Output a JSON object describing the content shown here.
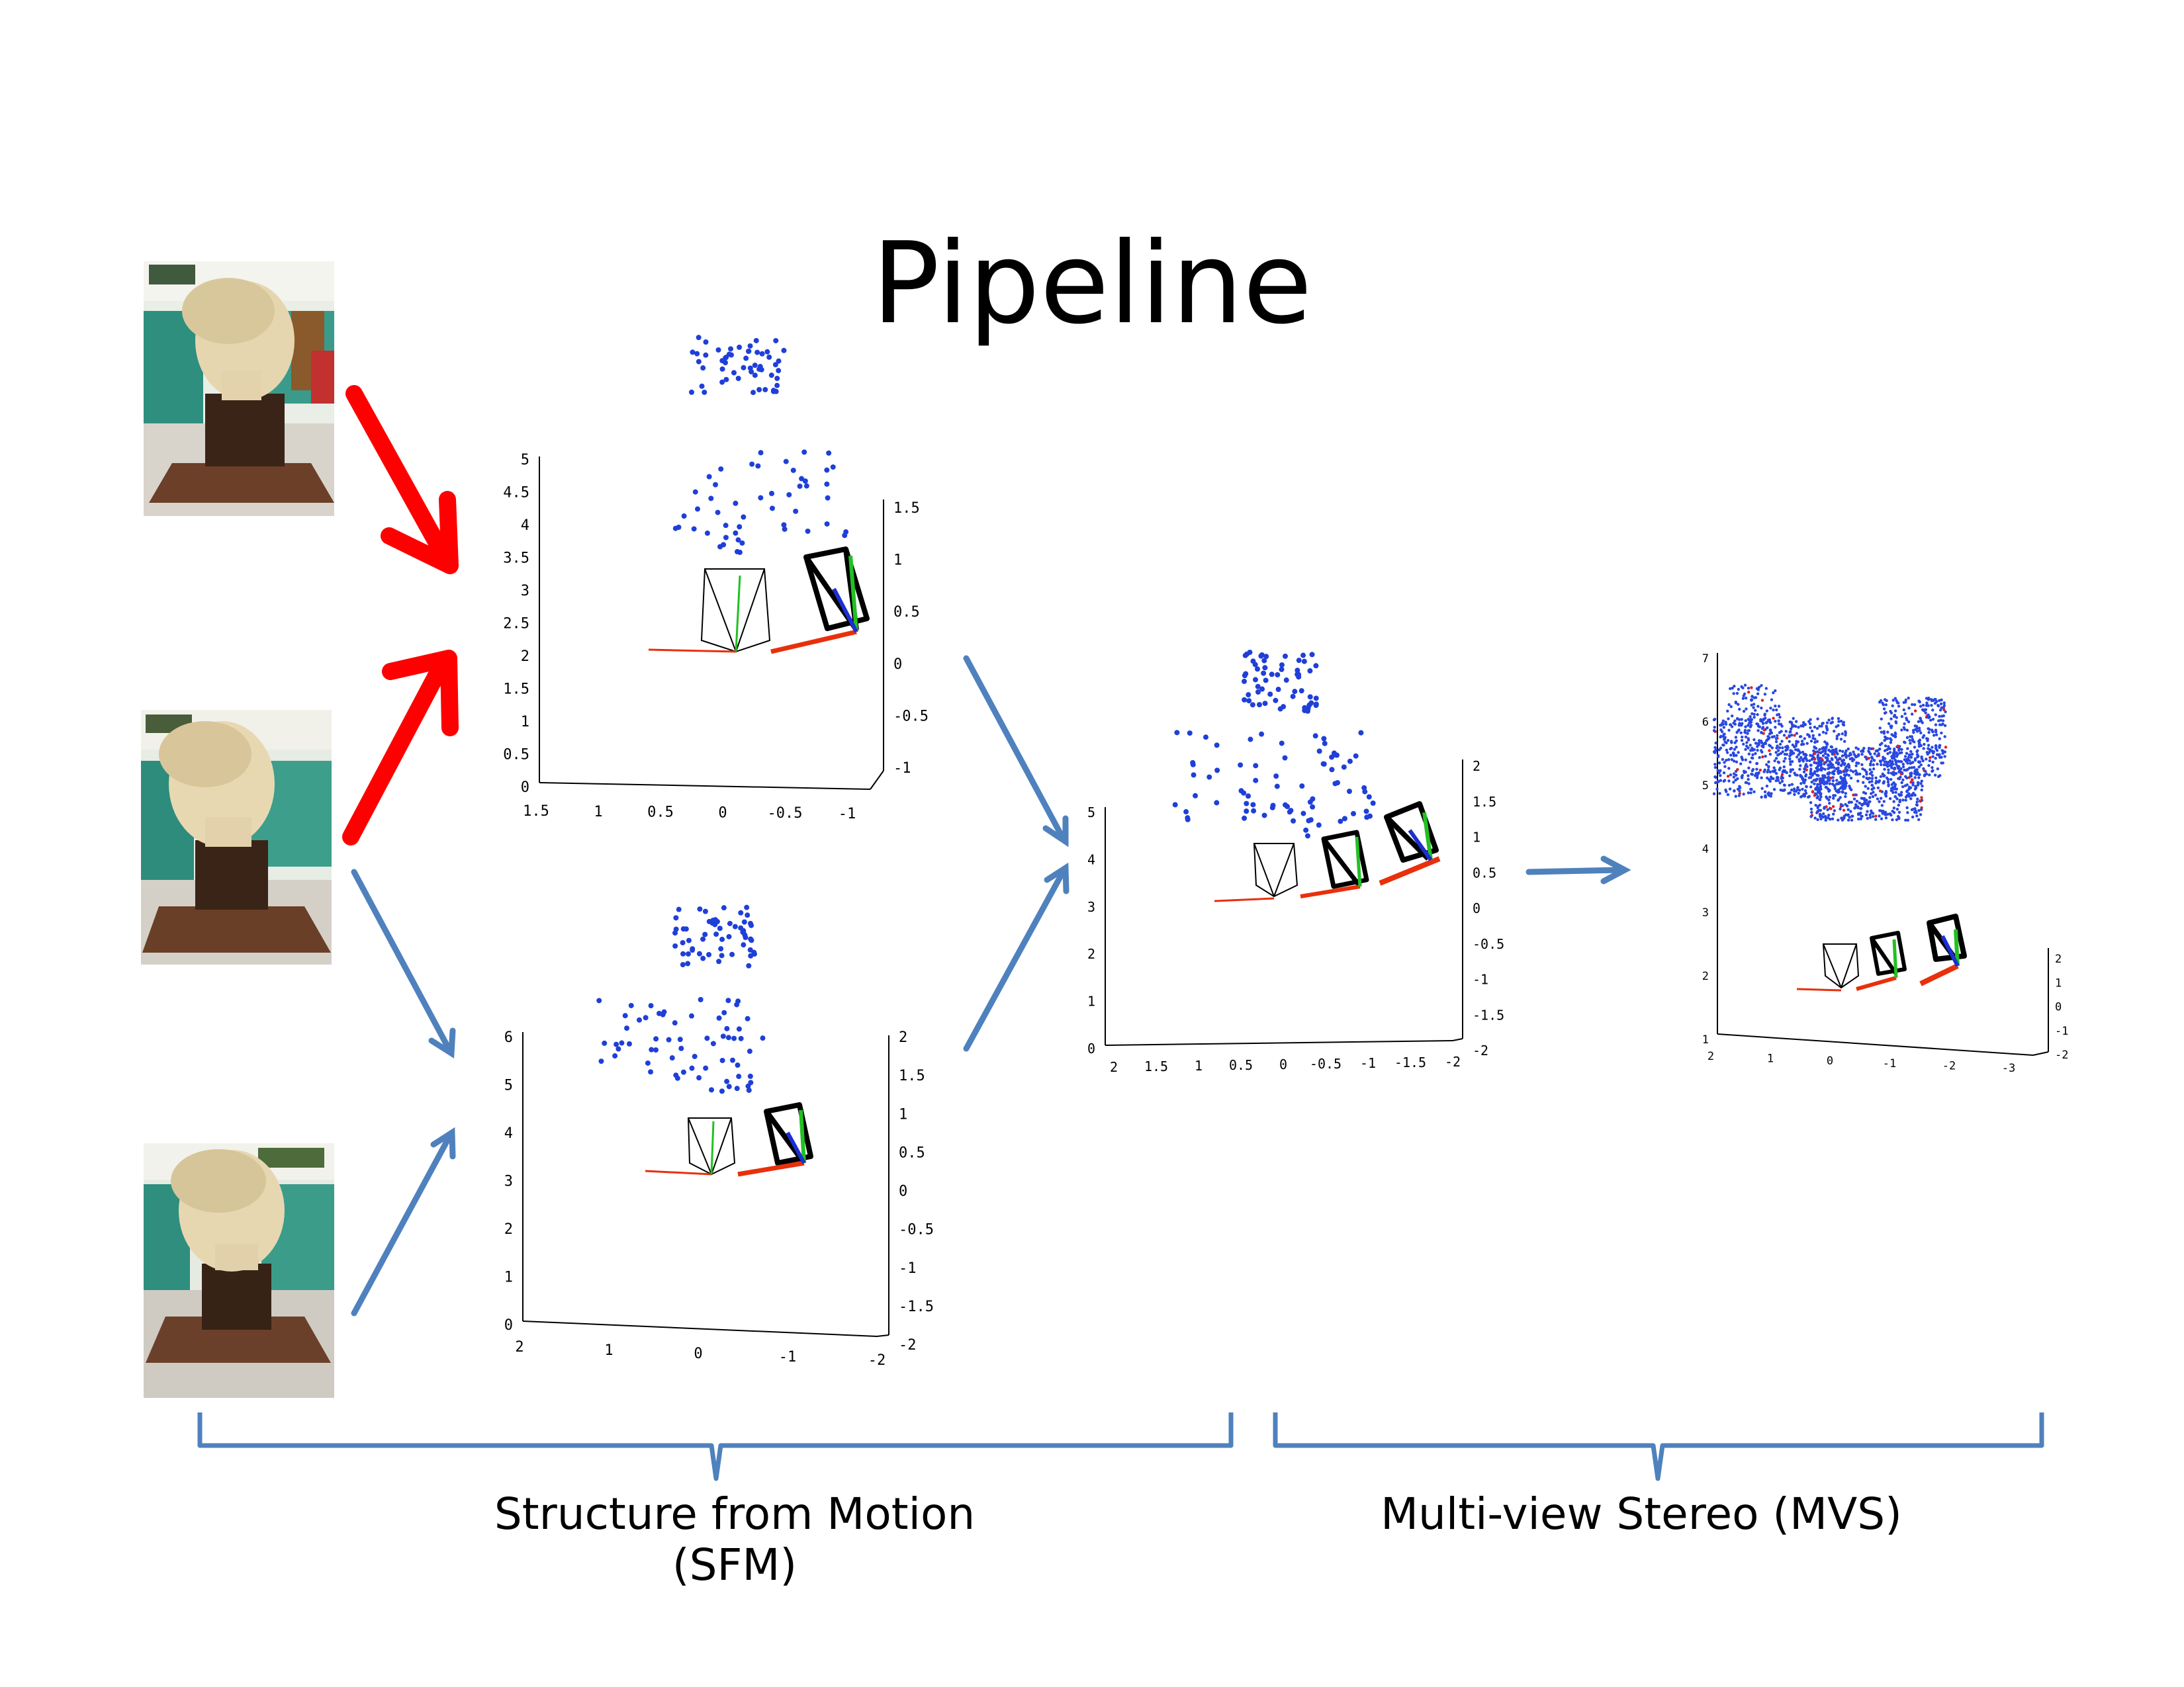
{
  "title": "Pipeline",
  "captions": {
    "sfm": "Structure from Motion (SFM)",
    "mvs": "Multi-view Stereo (MVS)"
  },
  "photos": [
    {
      "icon": "statue-photo-1",
      "description_icon": "bust-statue-icon"
    },
    {
      "icon": "statue-photo-2",
      "description_icon": "bust-statue-icon"
    },
    {
      "icon": "statue-photo-3",
      "description_icon": "bust-statue-icon"
    }
  ],
  "colors": {
    "red_arrow": "#ff0000",
    "blue_arrow": "#4f81bd",
    "bracket": "#4f81bd",
    "points": "#1f3fd8",
    "mvs_cloud": "#2948e0",
    "mvs_red": "#e02020",
    "axis_red": "#e8300c",
    "axis_green": "#22c022",
    "axis_blue": "#1c2fd0"
  },
  "plots": {
    "sfm_top": {
      "z_ticks": [
        "5",
        "4.5",
        "4",
        "3.5",
        "3",
        "2.5",
        "2",
        "1.5",
        "1",
        "0.5",
        "0"
      ],
      "x_ticks": [
        "1.5",
        "1",
        "0.5",
        "0",
        "-0.5",
        "-1"
      ],
      "y_ticks": [
        "1.5",
        "1",
        "0.5",
        "0",
        "-0.5",
        "-1"
      ]
    },
    "sfm_bottom": {
      "z_ticks": [
        "6",
        "5",
        "4",
        "3",
        "2",
        "1",
        "0"
      ],
      "x_ticks": [
        "2",
        "1",
        "0",
        "-1",
        "-2"
      ],
      "y_ticks": [
        "2",
        "1.5",
        "1",
        "0.5",
        "0",
        "-0.5",
        "-1",
        "-1.5",
        "-2"
      ]
    },
    "sfm_merged": {
      "z_ticks": [
        "5",
        "4",
        "3",
        "2",
        "1",
        "0"
      ],
      "x_ticks": [
        "2",
        "1.5",
        "1",
        "0.5",
        "0",
        "-0.5",
        "-1",
        "-1.5",
        "-2"
      ],
      "y_ticks": [
        "2",
        "1.5",
        "1",
        "0.5",
        "0",
        "-0.5",
        "-1",
        "-1.5",
        "-2"
      ]
    },
    "mvs": {
      "z_ticks": [
        "7",
        "6",
        "5",
        "4",
        "3",
        "2",
        "1"
      ],
      "x_ticks": [
        "2",
        "1",
        "0",
        "-1",
        "-2",
        "-3"
      ],
      "y_ticks": [
        "2",
        "1",
        "0",
        "-1",
        "-2"
      ]
    }
  }
}
